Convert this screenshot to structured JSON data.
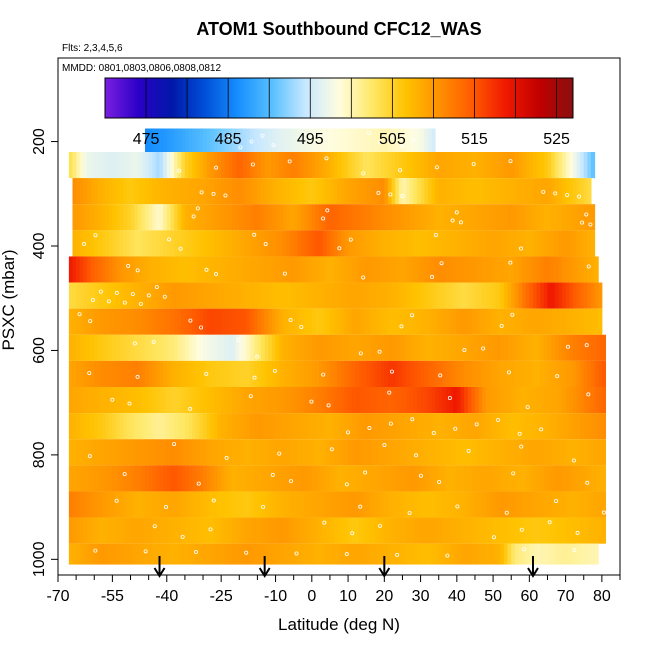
{
  "chart_data": {
    "type": "heatmap",
    "title": "ATOM1 Southbound CFC12_WAS",
    "subtitle_flights": "Flts: 2,3,4,5,6",
    "subtitle_dates": "MMDD: 0801,0803,0806,0808,0812",
    "xlabel": "Latitude (deg N)",
    "ylabel": "PSXC (mbar)",
    "xlim": [
      -70,
      85
    ],
    "ylim": [
      1030,
      40
    ],
    "x_ticks": [
      -70,
      -55,
      -40,
      -25,
      -10,
      0,
      10,
      20,
      30,
      40,
      50,
      60,
      70,
      80
    ],
    "x_tick_labels": [
      "-70",
      "-55",
      "-40",
      "-25",
      "-10",
      "0",
      "10",
      "20",
      "30",
      "40",
      "50",
      "60",
      "70",
      "80"
    ],
    "x_minor_ticks": [
      -65,
      -60,
      -50,
      -45,
      -35,
      -30,
      -20,
      -15,
      -5,
      5,
      15,
      25,
      35,
      45,
      55,
      65,
      75,
      85
    ],
    "y_ticks": [
      200,
      400,
      600,
      800,
      1000
    ],
    "y_tick_labels": [
      "200",
      "400",
      "600",
      "800",
      "1000"
    ],
    "colorbar": {
      "min": 470,
      "max": 527,
      "ticks": [
        475,
        485,
        495,
        505,
        515,
        525
      ],
      "tick_labels": [
        "475",
        "485",
        "495",
        "505",
        "515",
        "525"
      ],
      "stops": [
        "#7b1fe0",
        "#2b00c8",
        "#0018a8",
        "#0050d8",
        "#1890ff",
        "#58c0ff",
        "#c8e8ff",
        "#fffde0",
        "#ffe866",
        "#ffc200",
        "#ff9000",
        "#ff5a00",
        "#f01800",
        "#c00000",
        "#8a1010"
      ]
    },
    "arrows_lat": [
      -42,
      -13,
      20,
      61
    ],
    "layers": [
      {
        "p_top": 175,
        "p_bot": 220,
        "x0": -46,
        "x1": 34,
        "profile": [
          [
            -46,
            486
          ],
          [
            -40,
            487
          ],
          [
            -30,
            490
          ],
          [
            -20,
            493
          ],
          [
            -10,
            496
          ],
          [
            0,
            498
          ],
          [
            10,
            499
          ],
          [
            20,
            500
          ],
          [
            30,
            498
          ],
          [
            34,
            495
          ]
        ]
      },
      {
        "p_top": 220,
        "p_bot": 270,
        "x0": -67,
        "x1": 78,
        "profile": [
          [
            -67,
            504
          ],
          [
            -62,
            497
          ],
          [
            -55,
            496
          ],
          [
            -48,
            497
          ],
          [
            -42,
            493
          ],
          [
            -35,
            505
          ],
          [
            -28,
            510
          ],
          [
            -20,
            514
          ],
          [
            -12,
            510
          ],
          [
            -5,
            512
          ],
          [
            5,
            508
          ],
          [
            15,
            503
          ],
          [
            25,
            506
          ],
          [
            35,
            509
          ],
          [
            45,
            508
          ],
          [
            55,
            510
          ],
          [
            65,
            506
          ],
          [
            72,
            498
          ],
          [
            78,
            490
          ]
        ]
      },
      {
        "p_top": 270,
        "p_bot": 320,
        "x0": -66,
        "x1": 77,
        "profile": [
          [
            -66,
            511
          ],
          [
            -58,
            508
          ],
          [
            -50,
            506
          ],
          [
            -40,
            508
          ],
          [
            -30,
            509
          ],
          [
            -20,
            511
          ],
          [
            -10,
            508
          ],
          [
            0,
            506
          ],
          [
            10,
            509
          ],
          [
            20,
            511
          ],
          [
            25,
            500
          ],
          [
            35,
            508
          ],
          [
            45,
            507
          ],
          [
            55,
            508
          ],
          [
            65,
            509
          ],
          [
            77,
            504
          ]
        ]
      },
      {
        "p_top": 320,
        "p_bot": 370,
        "x0": -66,
        "x1": 78,
        "profile": [
          [
            -66,
            510
          ],
          [
            -58,
            508
          ],
          [
            -50,
            505
          ],
          [
            -42,
            499
          ],
          [
            -35,
            508
          ],
          [
            -25,
            510
          ],
          [
            -15,
            512
          ],
          [
            -5,
            509
          ],
          [
            5,
            514
          ],
          [
            15,
            512
          ],
          [
            25,
            510
          ],
          [
            35,
            508
          ],
          [
            45,
            509
          ],
          [
            55,
            510
          ],
          [
            65,
            508
          ],
          [
            78,
            510
          ]
        ]
      },
      {
        "p_top": 370,
        "p_bot": 420,
        "x0": -66,
        "x1": 78,
        "profile": [
          [
            -66,
            508
          ],
          [
            -58,
            506
          ],
          [
            -48,
            503
          ],
          [
            -38,
            505
          ],
          [
            -28,
            507
          ],
          [
            -18,
            509
          ],
          [
            -8,
            511
          ],
          [
            2,
            515
          ],
          [
            10,
            510
          ],
          [
            20,
            508
          ],
          [
            30,
            507
          ],
          [
            40,
            508
          ],
          [
            50,
            509
          ],
          [
            60,
            508
          ],
          [
            70,
            510
          ],
          [
            78,
            508
          ]
        ]
      },
      {
        "p_top": 420,
        "p_bot": 470,
        "x0": -67,
        "x1": 79,
        "profile": [
          [
            -67,
            519
          ],
          [
            -60,
            514
          ],
          [
            -52,
            510
          ],
          [
            -44,
            508
          ],
          [
            -35,
            507
          ],
          [
            -25,
            508
          ],
          [
            -15,
            509
          ],
          [
            -5,
            510
          ],
          [
            5,
            508
          ],
          [
            15,
            510
          ],
          [
            25,
            509
          ],
          [
            35,
            511
          ],
          [
            45,
            510
          ],
          [
            55,
            509
          ],
          [
            65,
            512
          ],
          [
            72,
            510
          ],
          [
            79,
            508
          ]
        ]
      },
      {
        "p_top": 470,
        "p_bot": 520,
        "x0": -67,
        "x1": 80,
        "profile": [
          [
            -67,
            504
          ],
          [
            -58,
            506
          ],
          [
            -48,
            508
          ],
          [
            -38,
            510
          ],
          [
            -28,
            509
          ],
          [
            -18,
            508
          ],
          [
            -8,
            507
          ],
          [
            2,
            508
          ],
          [
            12,
            509
          ],
          [
            22,
            508
          ],
          [
            32,
            506
          ],
          [
            42,
            504
          ],
          [
            52,
            506
          ],
          [
            60,
            514
          ],
          [
            66,
            519
          ],
          [
            72,
            515
          ],
          [
            80,
            510
          ]
        ]
      },
      {
        "p_top": 520,
        "p_bot": 570,
        "x0": -67,
        "x1": 80,
        "profile": [
          [
            -67,
            508
          ],
          [
            -58,
            510
          ],
          [
            -48,
            511
          ],
          [
            -38,
            513
          ],
          [
            -28,
            516
          ],
          [
            -18,
            515
          ],
          [
            -8,
            508
          ],
          [
            2,
            506
          ],
          [
            12,
            509
          ],
          [
            22,
            507
          ],
          [
            32,
            508
          ],
          [
            42,
            510
          ],
          [
            52,
            508
          ],
          [
            62,
            509
          ],
          [
            72,
            508
          ],
          [
            80,
            507
          ]
        ]
      },
      {
        "p_top": 570,
        "p_bot": 620,
        "x0": -67,
        "x1": 81,
        "profile": [
          [
            -67,
            508
          ],
          [
            -58,
            506
          ],
          [
            -48,
            504
          ],
          [
            -38,
            502
          ],
          [
            -30,
            498
          ],
          [
            -22,
            496
          ],
          [
            -15,
            502
          ],
          [
            -8,
            508
          ],
          [
            2,
            510
          ],
          [
            12,
            509
          ],
          [
            22,
            510
          ],
          [
            32,
            508
          ],
          [
            42,
            509
          ],
          [
            52,
            510
          ],
          [
            62,
            508
          ],
          [
            72,
            512
          ],
          [
            81,
            514
          ]
        ]
      },
      {
        "p_top": 620,
        "p_bot": 670,
        "x0": -67,
        "x1": 81,
        "profile": [
          [
            -67,
            509
          ],
          [
            -58,
            511
          ],
          [
            -48,
            512
          ],
          [
            -38,
            508
          ],
          [
            -28,
            506
          ],
          [
            -18,
            505
          ],
          [
            -8,
            508
          ],
          [
            2,
            510
          ],
          [
            12,
            514
          ],
          [
            22,
            517
          ],
          [
            32,
            514
          ],
          [
            42,
            511
          ],
          [
            52,
            509
          ],
          [
            62,
            508
          ],
          [
            72,
            510
          ],
          [
            81,
            515
          ]
        ]
      },
      {
        "p_top": 670,
        "p_bot": 720,
        "x0": -67,
        "x1": 81,
        "profile": [
          [
            -67,
            509
          ],
          [
            -58,
            508
          ],
          [
            -48,
            507
          ],
          [
            -38,
            505
          ],
          [
            -28,
            507
          ],
          [
            -18,
            509
          ],
          [
            -8,
            510
          ],
          [
            2,
            512
          ],
          [
            12,
            515
          ],
          [
            22,
            514
          ],
          [
            32,
            516
          ],
          [
            40,
            519
          ],
          [
            48,
            510
          ],
          [
            58,
            508
          ],
          [
            68,
            509
          ],
          [
            81,
            514
          ]
        ]
      },
      {
        "p_top": 720,
        "p_bot": 770,
        "x0": -67,
        "x1": 81,
        "profile": [
          [
            -67,
            508
          ],
          [
            -58,
            506
          ],
          [
            -50,
            503
          ],
          [
            -42,
            501
          ],
          [
            -34,
            503
          ],
          [
            -25,
            508
          ],
          [
            -15,
            510
          ],
          [
            -5,
            509
          ],
          [
            5,
            508
          ],
          [
            15,
            510
          ],
          [
            25,
            509
          ],
          [
            35,
            508
          ],
          [
            45,
            509
          ],
          [
            55,
            507
          ],
          [
            65,
            508
          ],
          [
            81,
            511
          ]
        ]
      },
      {
        "p_top": 770,
        "p_bot": 820,
        "x0": -67,
        "x1": 81,
        "profile": [
          [
            -67,
            508
          ],
          [
            -58,
            509
          ],
          [
            -48,
            510
          ],
          [
            -38,
            511
          ],
          [
            -28,
            509
          ],
          [
            -18,
            508
          ],
          [
            -8,
            509
          ],
          [
            2,
            508
          ],
          [
            12,
            510
          ],
          [
            22,
            509
          ],
          [
            32,
            508
          ],
          [
            42,
            507
          ],
          [
            52,
            508
          ],
          [
            62,
            509
          ],
          [
            72,
            508
          ],
          [
            81,
            509
          ]
        ]
      },
      {
        "p_top": 820,
        "p_bot": 870,
        "x0": -67,
        "x1": 81,
        "profile": [
          [
            -67,
            509
          ],
          [
            -58,
            510
          ],
          [
            -48,
            512
          ],
          [
            -38,
            515
          ],
          [
            -30,
            512
          ],
          [
            -22,
            508
          ],
          [
            -12,
            509
          ],
          [
            -2,
            510
          ],
          [
            8,
            508
          ],
          [
            18,
            509
          ],
          [
            28,
            510
          ],
          [
            38,
            508
          ],
          [
            48,
            509
          ],
          [
            58,
            508
          ],
          [
            68,
            510
          ],
          [
            81,
            508
          ]
        ]
      },
      {
        "p_top": 870,
        "p_bot": 920,
        "x0": -67,
        "x1": 81,
        "profile": [
          [
            -67,
            512
          ],
          [
            -58,
            510
          ],
          [
            -48,
            508
          ],
          [
            -38,
            509
          ],
          [
            -28,
            507
          ],
          [
            -18,
            506
          ],
          [
            -8,
            508
          ],
          [
            2,
            509
          ],
          [
            12,
            510
          ],
          [
            22,
            508
          ],
          [
            32,
            507
          ],
          [
            42,
            508
          ],
          [
            52,
            510
          ],
          [
            62,
            509
          ],
          [
            72,
            508
          ],
          [
            81,
            509
          ]
        ]
      },
      {
        "p_top": 920,
        "p_bot": 970,
        "x0": -67,
        "x1": 81,
        "profile": [
          [
            -67,
            510
          ],
          [
            -58,
            508
          ],
          [
            -48,
            509
          ],
          [
            -38,
            508
          ],
          [
            -28,
            507
          ],
          [
            -18,
            509
          ],
          [
            -8,
            510
          ],
          [
            2,
            508
          ],
          [
            12,
            506
          ],
          [
            22,
            508
          ],
          [
            32,
            509
          ],
          [
            42,
            508
          ],
          [
            52,
            507
          ],
          [
            62,
            506
          ],
          [
            72,
            507
          ],
          [
            81,
            508
          ]
        ]
      },
      {
        "p_top": 970,
        "p_bot": 1010,
        "x0": -67,
        "x1": 79,
        "profile": [
          [
            -67,
            508
          ],
          [
            -58,
            510
          ],
          [
            -48,
            509
          ],
          [
            -38,
            508
          ],
          [
            -28,
            509
          ],
          [
            -18,
            510
          ],
          [
            -8,
            509
          ],
          [
            2,
            508
          ],
          [
            12,
            509
          ],
          [
            22,
            508
          ],
          [
            32,
            507
          ],
          [
            42,
            509
          ],
          [
            52,
            508
          ],
          [
            56,
            502
          ],
          [
            62,
            500
          ],
          [
            70,
            501
          ],
          [
            79,
            500
          ]
        ]
      }
    ]
  }
}
